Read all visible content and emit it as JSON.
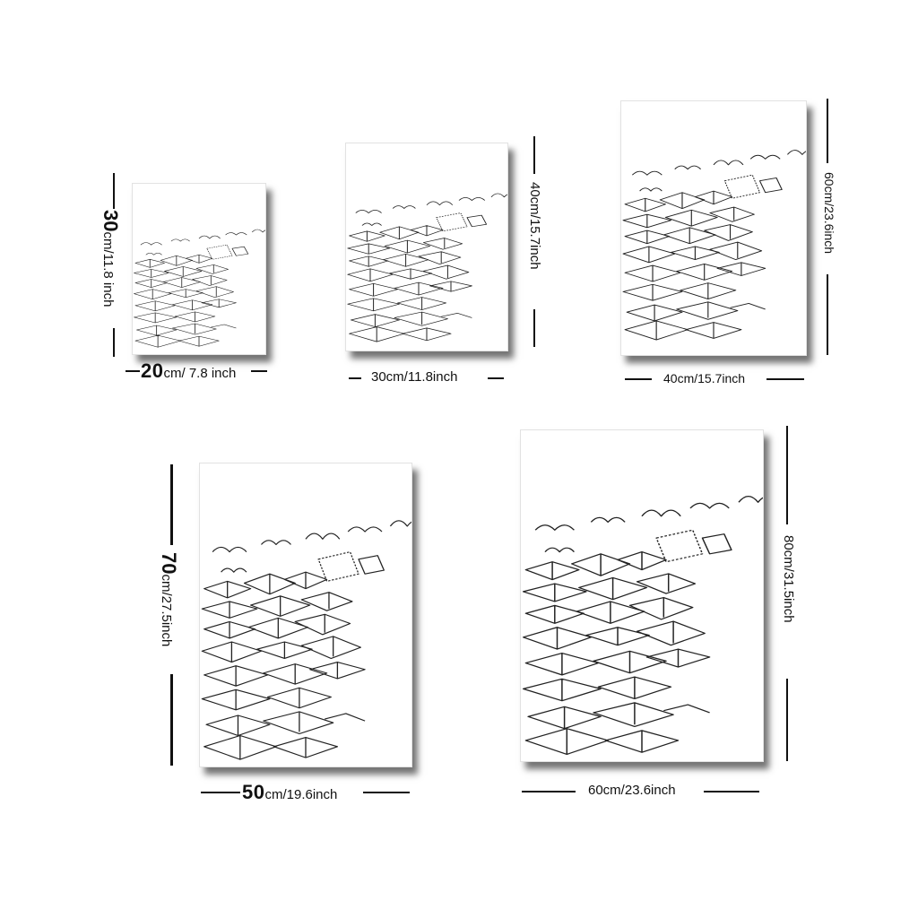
{
  "sizes": [
    {
      "id": "s1",
      "number": "20",
      "unit": "cm/ 7.8 inch",
      "height_number": "30",
      "height_unit": "cm/11.8 inch"
    },
    {
      "id": "s2",
      "width_label": "30cm/11.8inch",
      "height_label": "40cm/15.7inch"
    },
    {
      "id": "s3",
      "width_label": "40cm/15.7inch",
      "height_label": "60cm/23.6inch"
    },
    {
      "id": "s4",
      "number": "50",
      "unit": "cm/19.6inch",
      "height_number": "70",
      "height_unit": "cm/27.5inch"
    },
    {
      "id": "s5",
      "width_label": "60cm/23.6inch",
      "height_label": "80cm/31.5inch"
    }
  ],
  "artwork_icon": "flying-books-line-art"
}
